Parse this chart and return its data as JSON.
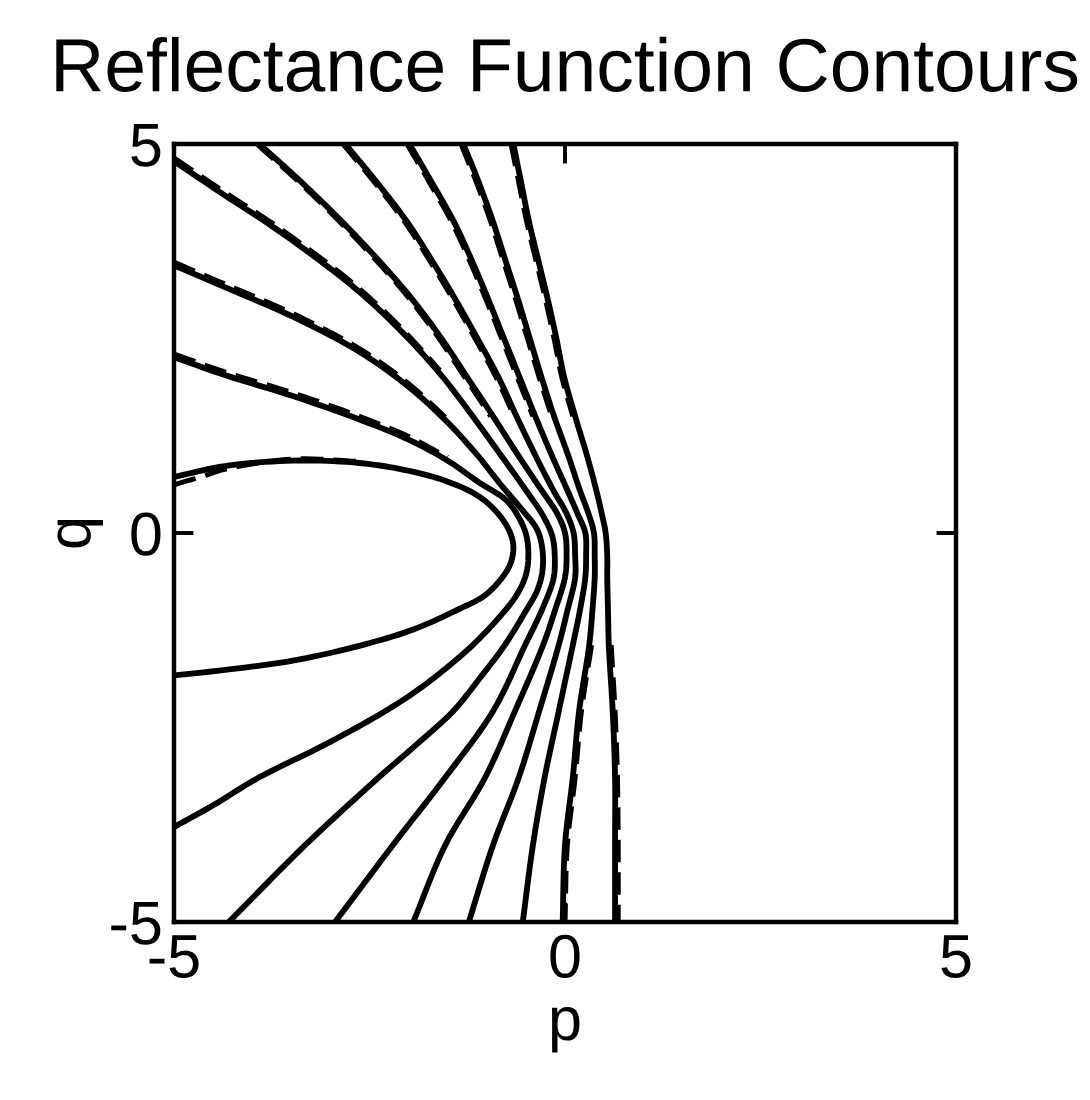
{
  "chart_data": {
    "type": "line",
    "title": "Reflectance Function Contours",
    "xlabel": "p",
    "ylabel": "q",
    "xlim": [
      -5,
      5
    ],
    "ylim": [
      -5,
      5
    ],
    "xticks": [
      -5,
      0,
      5
    ],
    "yticks": [
      -5,
      0,
      5
    ],
    "series": [
      {
        "color": "#000000",
        "line_style": "dashed",
        "x": [
          -5,
          -4.6,
          -4.35,
          -3.48,
          -2.63
        ],
        "values": [
          0.62,
          0.74,
          0.82,
          0.95,
          0.92
        ]
      },
      {
        "color": "#000000",
        "line_style": "dashed",
        "x": [
          -5,
          -4.35,
          -3.48,
          -2.63,
          -2.0,
          -1.5
        ],
        "values": [
          2.3,
          2.07,
          1.8,
          1.5,
          1.24,
          0.97
        ]
      },
      {
        "color": "#000000",
        "line_style": "dashed",
        "x": [
          -5,
          -4.35,
          -3.48,
          -2.63,
          -2.0,
          -1.5
        ],
        "values": [
          3.48,
          3.2,
          2.82,
          2.37,
          1.92,
          1.46
        ]
      },
      {
        "color": "#000000",
        "line_style": "dashed",
        "x": [
          -5,
          -4.35,
          -3.8,
          -3.2,
          -2.63,
          -2.1,
          -1.6
        ],
        "values": [
          4.82,
          4.38,
          4.02,
          3.59,
          3.14,
          2.64,
          2.09
        ]
      },
      {
        "color": "#000000",
        "line_style": "dashed",
        "x": [
          -3.94,
          -3.39,
          -2.88,
          -2.41,
          -1.98,
          -1.61,
          -1.28,
          -0.95
        ],
        "values": [
          5,
          4.5,
          4,
          3.5,
          3,
          2.5,
          2,
          1.5
        ]
      },
      {
        "color": "#000000",
        "line_style": "dashed",
        "x": [
          -2.84,
          -2.43,
          -2.05,
          -1.73,
          -1.43,
          -1.15,
          -0.88,
          -0.65
        ],
        "values": [
          5,
          4.5,
          4,
          3.5,
          3,
          2.5,
          2,
          1.5
        ]
      },
      {
        "color": "#000000",
        "line_style": "dashed",
        "x": [
          -2.02,
          -1.73,
          -1.45,
          -1.22,
          -1.01,
          -0.81,
          -0.61,
          -0.41
        ],
        "values": [
          5,
          4.5,
          4,
          3.5,
          3,
          2.5,
          2,
          1.5
        ]
      },
      {
        "color": "#000000",
        "line_style": "dashed",
        "x": [
          -1.33,
          -1.13,
          -0.95,
          -0.79,
          -0.63,
          -0.48,
          -0.33,
          -0.17
        ],
        "values": [
          5,
          4.5,
          4,
          3.5,
          3,
          2.5,
          2,
          1.5
        ]
      },
      {
        "color": "#000000",
        "line_style": "dashed",
        "x": [
          -0.69,
          -0.59,
          -0.49,
          -0.37,
          -0.25,
          -0.14,
          -0.04,
          0.1
        ],
        "values": [
          5,
          4.5,
          4,
          3.5,
          3,
          2.5,
          2,
          1.5
        ]
      },
      {
        "color": "#000000",
        "line_style": "dashed",
        "x": [
          0.34,
          0.21,
          0.13,
          0.03,
          0.0
        ],
        "values": [
          -1.44,
          -2.29,
          -3.14,
          -4.01,
          -5
        ]
      },
      {
        "color": "#000000",
        "line_style": "dashed",
        "x": [
          0.59,
          0.64,
          0.67,
          0.68,
          0.68
        ],
        "values": [
          -1.44,
          -2.29,
          -3.14,
          -4.01,
          -5
        ]
      },
      {
        "color": "#000000",
        "line_style": "solid",
        "x": [
          -5,
          -4.35,
          -3.48,
          -2.63,
          -2.0,
          -1.5,
          -1.1,
          -0.84,
          -0.7,
          -0.66,
          -0.7,
          -0.84,
          -1.05,
          -1.36,
          -1.94,
          -2.63,
          -3.48,
          -4.35,
          -5
        ],
        "values": [
          0.72,
          0.86,
          0.93,
          0.9,
          0.8,
          0.66,
          0.47,
          0.23,
          0.0,
          -0.18,
          -0.4,
          -0.62,
          -0.82,
          -0.98,
          -1.24,
          -1.45,
          -1.64,
          -1.76,
          -1.83
        ]
      },
      {
        "color": "#000000",
        "line_style": "solid",
        "x": [
          -5,
          -4.35,
          -3.48,
          -2.63,
          -2.0,
          -1.5,
          -1.1,
          -0.75,
          -0.58,
          -0.49,
          -0.47,
          -0.51,
          -0.62,
          -0.77,
          -1.18,
          -1.79,
          -2.3,
          -3.07,
          -3.91,
          -4.5,
          -5
        ],
        "values": [
          2.26,
          2.03,
          1.76,
          1.46,
          1.2,
          0.93,
          0.65,
          0.42,
          0.18,
          -0.05,
          -0.35,
          -0.57,
          -0.8,
          -1.0,
          -1.44,
          -1.95,
          -2.29,
          -2.72,
          -3.14,
          -3.5,
          -3.78
        ]
      },
      {
        "color": "#000000",
        "line_style": "solid",
        "x": [
          -5,
          -4.35,
          -3.48,
          -2.63,
          -2.0,
          -1.5,
          -1.12,
          -0.82,
          -0.55,
          -0.36,
          -0.29,
          -0.29,
          -0.36,
          -0.5,
          -0.77,
          -1.1,
          -1.43,
          -1.9,
          -2.38,
          -3.32,
          -4.3
        ],
        "values": [
          3.44,
          3.16,
          2.78,
          2.33,
          1.88,
          1.42,
          1.0,
          0.62,
          0.3,
          0.05,
          -0.2,
          -0.5,
          -0.75,
          -1.0,
          -1.44,
          -1.88,
          -2.29,
          -2.72,
          -3.14,
          -4.01,
          -5
        ]
      },
      {
        "color": "#000000",
        "line_style": "solid",
        "x": [
          -5,
          -4.35,
          -3.8,
          -3.2,
          -2.63,
          -2.1,
          -1.6,
          -1.18,
          -0.82,
          -0.5,
          -0.28,
          -0.16,
          -0.13,
          -0.15,
          -0.3,
          -0.51,
          -0.92,
          -1.53,
          -2.2,
          -2.94
        ],
        "values": [
          4.78,
          4.34,
          3.98,
          3.55,
          3.1,
          2.6,
          2.05,
          1.5,
          1.0,
          0.55,
          0.22,
          -0.05,
          -0.35,
          -0.6,
          -1.0,
          -1.44,
          -2.29,
          -3.14,
          -4.01,
          -5
        ]
      },
      {
        "color": "#000000",
        "line_style": "solid",
        "x": [
          -3.91,
          -3.36,
          -2.85,
          -2.38,
          -1.95,
          -1.58,
          -1.25,
          -0.92,
          -0.6,
          -0.3,
          -0.1,
          0.0,
          0.02,
          0.0,
          -0.13,
          -0.28,
          -0.64,
          -1.02,
          -1.53,
          -1.94
        ],
        "values": [
          5,
          4.5,
          4,
          3.5,
          3,
          2.5,
          2,
          1.5,
          1,
          0.55,
          0.25,
          0.0,
          -0.3,
          -0.57,
          -1.0,
          -1.44,
          -2.29,
          -3.14,
          -4.01,
          -5
        ]
      },
      {
        "color": "#000000",
        "line_style": "solid",
        "x": [
          -2.81,
          -2.4,
          -2.02,
          -1.7,
          -1.4,
          -1.12,
          -0.85,
          -0.62,
          -0.38,
          -0.15,
          0.02,
          0.11,
          0.13,
          0.13,
          0.03,
          -0.08,
          -0.33,
          -0.59,
          -0.92,
          -1.23
        ],
        "values": [
          5,
          4.5,
          4,
          3.5,
          3,
          2.5,
          2,
          1.5,
          1,
          0.55,
          0.25,
          0.0,
          -0.3,
          -0.57,
          -1.0,
          -1.44,
          -2.29,
          -3.14,
          -4.01,
          -5
        ]
      },
      {
        "color": "#000000",
        "line_style": "solid",
        "x": [
          -1.99,
          -1.7,
          -1.42,
          -1.19,
          -0.98,
          -0.78,
          -0.58,
          -0.38,
          -0.17,
          0.03,
          0.16,
          0.26,
          0.27,
          0.26,
          0.19,
          0.1,
          -0.08,
          -0.26,
          -0.41,
          -0.54
        ],
        "values": [
          5,
          4.5,
          4,
          3.5,
          3,
          2.5,
          2,
          1.5,
          1,
          0.55,
          0.25,
          0.0,
          -0.3,
          -0.57,
          -1.0,
          -1.44,
          -2.29,
          -3.14,
          -4.01,
          -5
        ]
      },
      {
        "color": "#000000",
        "line_style": "solid",
        "x": [
          -1.3,
          -1.1,
          -0.92,
          -0.76,
          -0.6,
          -0.45,
          -0.3,
          -0.14,
          0.04,
          0.19,
          0.3,
          0.37,
          0.38,
          0.38,
          0.35,
          0.31,
          0.18,
          0.1,
          0.0,
          -0.03
        ],
        "values": [
          5,
          4.5,
          4,
          3.5,
          3,
          2.5,
          2,
          1.5,
          1,
          0.55,
          0.25,
          0.0,
          -0.3,
          -0.57,
          -1.0,
          -1.44,
          -2.29,
          -3.14,
          -4.01,
          -5
        ]
      },
      {
        "color": "#000000",
        "line_style": "solid",
        "x": [
          -0.66,
          -0.56,
          -0.46,
          -0.34,
          -0.22,
          -0.11,
          -0.01,
          0.13,
          0.28,
          0.4,
          0.47,
          0.52,
          0.54,
          0.54,
          0.55,
          0.56,
          0.61,
          0.64,
          0.64,
          0.64
        ],
        "values": [
          5,
          4.5,
          4,
          3.5,
          3,
          2.5,
          2,
          1.5,
          1,
          0.55,
          0.25,
          0.0,
          -0.3,
          -0.57,
          -1.0,
          -1.44,
          -2.29,
          -3.14,
          -4.01,
          -5
        ]
      }
    ]
  }
}
